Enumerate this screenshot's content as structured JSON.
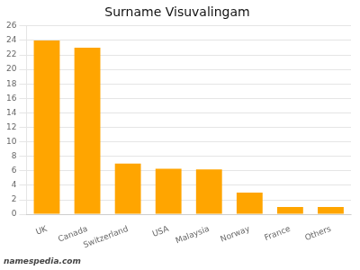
{
  "chart_data": {
    "type": "bar",
    "title": "Surname Visuvalingam",
    "categories": [
      "UK",
      "Canada",
      "Switzerland",
      "USA",
      "Malaysia",
      "Norway",
      "France",
      "Others"
    ],
    "values": [
      24,
      23,
      7,
      6.3,
      6.2,
      3,
      1,
      1
    ],
    "color": "#FFA500",
    "ylim": [
      0,
      26
    ],
    "yticks": [
      0,
      2,
      4,
      6,
      8,
      10,
      12,
      14,
      16,
      18,
      20,
      22,
      24,
      26
    ],
    "grid": true,
    "annotations": [
      "namespedia.com"
    ]
  }
}
